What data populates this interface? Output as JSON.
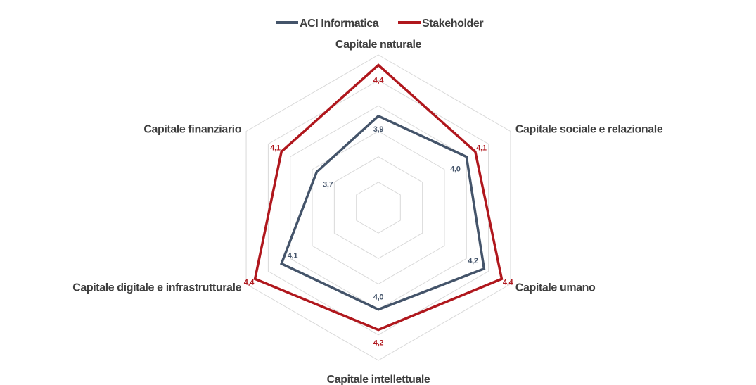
{
  "chart_data": {
    "type": "radar",
    "categories": [
      "Capitale naturale",
      "Capitale sociale e relazionale",
      "Capitale umano",
      "Capitale intellettuale",
      "Capitale digitale e infrastrutturale",
      "Capitale finanziario"
    ],
    "series": [
      {
        "name": "ACI Informatica",
        "color": "#44546a",
        "values": [
          3.9,
          4.0,
          4.2,
          4.0,
          4.1,
          3.7
        ],
        "labels": [
          "3,9",
          "4,0",
          "4,2",
          "4,0",
          "4,1",
          "3,7"
        ]
      },
      {
        "name": "Stakeholder",
        "color": "#b0171d",
        "values": [
          4.4,
          4.1,
          4.4,
          4.2,
          4.4,
          4.1
        ],
        "labels": [
          "4,4",
          "4,1",
          "4,4",
          "4,2",
          "4,4",
          "4,1"
        ]
      }
    ],
    "rlim": [
      3.0,
      4.5
    ],
    "grid": true,
    "legend_position": "top"
  }
}
